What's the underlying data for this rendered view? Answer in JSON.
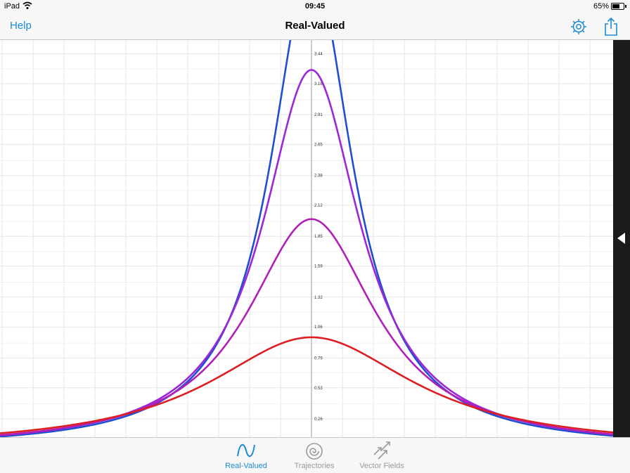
{
  "status_bar": {
    "carrier": "iPad",
    "time": "09:45",
    "battery": "65%",
    "battery_level": 0.65
  },
  "nav": {
    "help": "Help",
    "title": "Real-Valued"
  },
  "tabs": [
    {
      "label": "Real-Valued",
      "icon": "wave-icon",
      "active": true
    },
    {
      "label": "Trajectories",
      "icon": "spiral-icon",
      "active": false
    },
    {
      "label": "Vector Fields",
      "icon": "arrows-icon",
      "active": false
    }
  ],
  "colors": {
    "accent": "#1d8ad3",
    "blue_curve": "#1f4fd1",
    "violet_curve": "#9c27d6",
    "magenta_curve": "#b01fb8",
    "red_curve": "#dd1f24"
  },
  "chart_data": {
    "type": "line",
    "y_ticks": [
      "0.26",
      "0.53",
      "0.79",
      "1.06",
      "1.32",
      "1.59",
      "1.85",
      "2.12",
      "2.38",
      "2.65",
      "2.91",
      "3.18",
      "3.44"
    ],
    "ylim": [
      0.1,
      3.56
    ],
    "xlim": [
      -5,
      5
    ],
    "series": [
      {
        "color": "#1f4fd1",
        "peak": 4.2,
        "width": 0.8
      },
      {
        "color": "#9c27d6",
        "peak": 3.3,
        "width": 0.95
      },
      {
        "color": "#b01fb8",
        "peak": 2.0,
        "width": 1.25
      },
      {
        "color": "#dd1f24",
        "peak": 0.97,
        "width": 2.0
      }
    ]
  }
}
